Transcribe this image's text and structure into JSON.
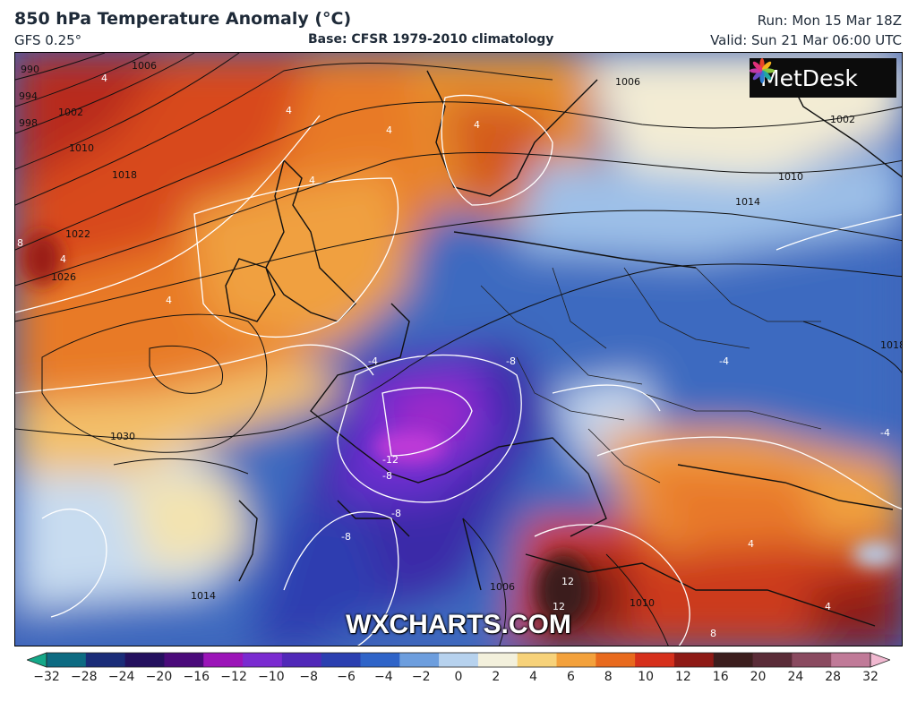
{
  "header": {
    "title": "850 hPa Temperature Anomaly (°C)",
    "model": "GFS 0.25°",
    "base": "Base: CFSR 1979-2010 climatology",
    "run": "Run: Mon 15 Mar 18Z",
    "valid": "Valid: Sun 21 Mar 06:00 UTC"
  },
  "logo": {
    "text": "MetDesk",
    "icon": "metdesk-star-icon"
  },
  "watermark": "WXCHARTS.COM",
  "isobar_labels": [
    "990",
    "994",
    "998",
    "1002",
    "1006",
    "1010",
    "1018",
    "1022",
    "1026",
    "1030",
    "1006",
    "1002",
    "1010",
    "1014",
    "1018",
    "1014",
    "1006",
    "1010"
  ],
  "anomaly_labels": [
    "4",
    "4",
    "4",
    "4",
    "4",
    "8",
    "4",
    "4",
    "-4",
    "-8",
    "-12",
    "-8",
    "-8",
    "-8",
    "-4",
    "-4",
    "12",
    "12",
    "8",
    "4",
    "4"
  ],
  "colorbar": {
    "ticks": [
      "−32",
      "−28",
      "−24",
      "−20",
      "−16",
      "−12",
      "−10",
      "−8",
      "−6",
      "−4",
      "−2",
      "0",
      "2",
      "4",
      "6",
      "8",
      "10",
      "12",
      "16",
      "20",
      "24",
      "28",
      "32"
    ],
    "colors": [
      "#14a888",
      "#0d6b82",
      "#1a2c78",
      "#24105e",
      "#4a0a7a",
      "#9b14b8",
      "#7a2bd0",
      "#5028b8",
      "#2b3fb0",
      "#2f64c8",
      "#6d9ede",
      "#b7d2ee",
      "#f3f0dc",
      "#f7d27a",
      "#f3a13c",
      "#e86a1e",
      "#d6301c",
      "#8e1a16",
      "#3c1e1e",
      "#5a2c38",
      "#8a4a60",
      "#c07a98",
      "#f0b8d0"
    ]
  }
}
